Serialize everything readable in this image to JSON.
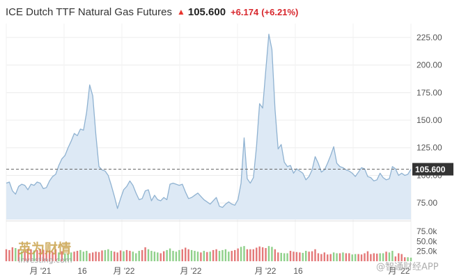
{
  "header": {
    "title": "ICE Dutch TTF Natural Gas Futures",
    "last": "105.600",
    "change": "+6.174",
    "change_pct": "(+6.21%)",
    "arrow_icon": "up-arrow-icon",
    "up_color": "#e8352d"
  },
  "colors": {
    "line": "#8fb2d1",
    "area": "#dde9f5",
    "volume_up": "#8fd08a",
    "volume_down": "#e47878",
    "label_bg": "#333333",
    "grid": "#ececec"
  },
  "watermarks": {
    "left_logo_cn": "英为财情",
    "left_logo_en": "Investing.com",
    "right_logo": "@智通财经APP"
  },
  "chart_data": {
    "type": "area",
    "title": "ICE Dutch TTF Natural Gas Futures",
    "last_price": 105.6,
    "last_price_label": "105.600",
    "price_axis": {
      "ticks": [
        "75.00",
        "100.00",
        "125.00",
        "150.00",
        "175.00",
        "200.00",
        "225.00"
      ],
      "range": [
        60,
        235
      ]
    },
    "volume_axis": {
      "ticks": [
        "25.0k",
        "50.0k",
        "75.0k"
      ],
      "range": [
        0,
        80
      ]
    },
    "x_labels": [
      "月 '21",
      "16",
      "月 '22",
      "月 '22",
      "月 '22",
      "16",
      "月 '22"
    ],
    "series": [
      {
        "values": [
          93,
          94,
          86,
          83,
          90,
          92,
          91,
          87,
          92,
          91,
          94,
          93,
          88,
          89,
          95,
          99,
          101,
          109,
          115,
          118,
          125,
          131,
          138,
          136,
          142,
          141,
          157,
          182,
          172,
          137,
          108,
          105,
          104,
          100,
          91,
          81,
          70,
          79,
          87,
          90,
          95,
          91,
          84,
          78,
          79,
          86,
          87,
          77,
          82,
          78,
          77,
          80,
          78,
          92,
          93,
          92,
          91,
          92,
          85,
          79,
          80,
          82,
          84,
          81,
          78,
          76,
          74,
          77,
          80,
          72,
          71,
          74,
          76,
          74,
          73,
          78,
          93,
          134,
          97,
          93,
          98,
          126,
          165,
          161,
          195,
          228,
          214,
          160,
          124,
          128,
          112,
          108,
          109,
          102,
          106,
          104,
          102,
          96,
          99,
          105,
          117,
          111,
          103,
          105,
          111,
          118,
          126,
          111,
          108,
          107,
          105,
          104,
          102,
          99,
          103,
          107,
          106,
          99,
          98,
          95,
          96,
          102,
          98,
          96,
          97,
          108,
          106,
          100,
          102,
          100,
          101,
          105.6
        ]
      },
      {
        "name": "volume",
        "values": [
          30,
          28,
          35,
          33,
          30,
          25,
          24,
          32,
          30,
          27,
          28,
          31,
          29,
          26,
          27,
          24,
          30,
          22,
          25,
          20,
          18,
          22,
          24,
          26,
          28,
          24,
          26,
          20,
          22,
          24,
          23,
          27,
          28,
          30,
          26,
          24,
          22,
          27,
          25,
          28,
          26,
          24,
          20,
          26,
          28,
          35,
          30,
          26,
          24,
          22,
          20,
          25,
          28,
          32,
          26,
          24,
          28,
          30,
          34,
          30,
          28,
          26,
          24,
          22,
          26,
          23,
          24,
          28,
          30,
          26,
          28,
          30,
          24,
          26,
          28,
          32,
          36,
          38,
          30,
          30,
          30,
          34,
          37,
          35,
          33,
          38,
          36,
          30,
          22,
          21,
          20,
          20,
          26,
          24,
          23,
          22,
          21,
          26,
          24,
          25,
          30,
          20,
          18,
          22,
          17,
          18,
          22,
          20,
          20,
          22,
          20,
          20,
          17,
          18,
          18,
          17,
          20,
          25,
          18,
          20,
          19,
          20,
          20,
          24,
          22,
          26,
          12,
          20,
          18,
          10,
          10,
          9
        ],
        "colors": "dddududdduddddddduduuudduuuddddduuudddudduuudduuuudduuuuuddduuudududduuuuddduuddddddduudduuudddduudddddddduududduuddddddduuduudddduu"
      }
    ]
  }
}
